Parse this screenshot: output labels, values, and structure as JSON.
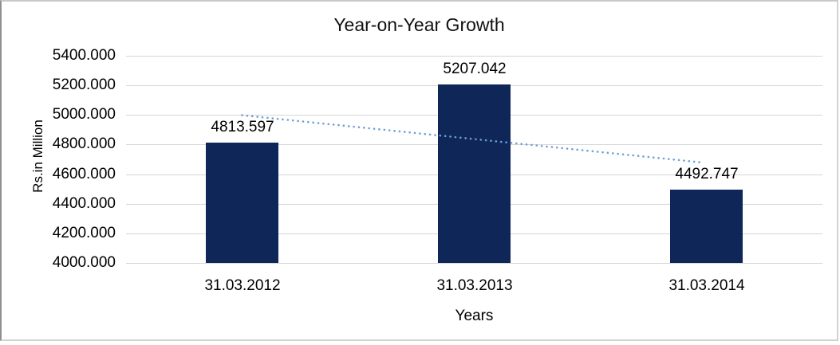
{
  "chart_data": {
    "type": "bar",
    "title": "Year-on-Year Growth",
    "xlabel": "Years",
    "ylabel": "Rs.in Million",
    "categories": [
      "31.03.2012",
      "31.03.2013",
      "31.03.2014"
    ],
    "values": [
      4813.597,
      5207.042,
      4492.747
    ],
    "data_labels": [
      "4813.597",
      "5207.042",
      "4492.747"
    ],
    "ylim": [
      4000,
      5400
    ],
    "ytick_step": 200,
    "ytick_labels": [
      "5400.000",
      "5200.000",
      "5000.000",
      "4800.000",
      "4600.000",
      "4400.000",
      "4200.000",
      "4000.000"
    ],
    "grid": true,
    "legend": "none",
    "trendline": {
      "kind": "linear",
      "style": "dotted"
    },
    "colors": {
      "bar": "#0e2758",
      "gridline": "#d6d6d6",
      "trendline": "#6f9ed6",
      "text": "#000000"
    }
  }
}
